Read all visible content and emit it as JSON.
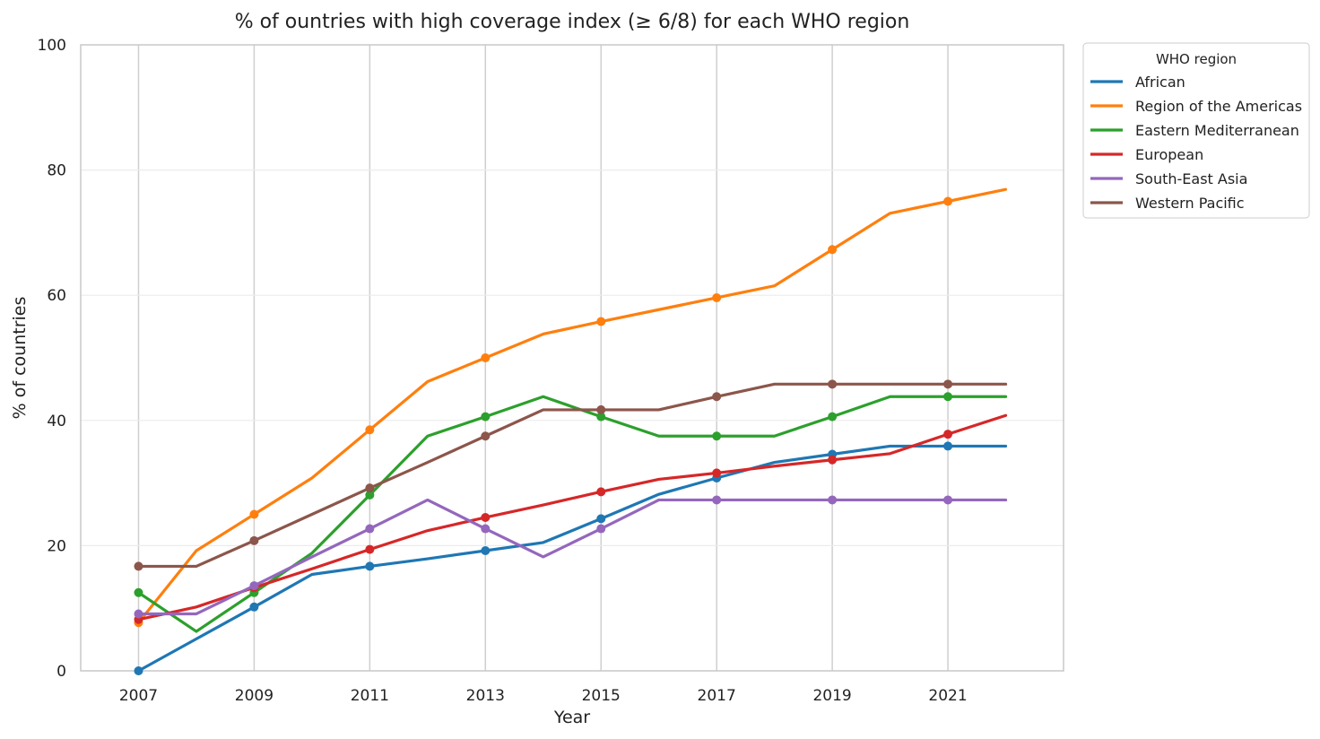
{
  "chart_data": {
    "type": "line",
    "title": "% of ountries with high coverage index (≥ 6/8) for each WHO region",
    "xlabel": "Year",
    "ylabel": "% of countries",
    "xlim": [
      2006,
      2023
    ],
    "ylim": [
      0,
      100
    ],
    "x_ticks": [
      2007,
      2009,
      2011,
      2013,
      2015,
      2017,
      2019,
      2021
    ],
    "y_ticks": [
      0,
      20,
      40,
      60,
      80,
      100
    ],
    "grid": {
      "x_major": true,
      "y_major": true
    },
    "legend": {
      "title": "WHO region",
      "placement": "outside-top-right"
    },
    "x": [
      2007,
      2008,
      2009,
      2010,
      2011,
      2012,
      2013,
      2014,
      2015,
      2016,
      2017,
      2018,
      2019,
      2020,
      2021,
      2022
    ],
    "marker_years": [
      2007,
      2009,
      2011,
      2013,
      2015,
      2017,
      2019,
      2021
    ],
    "series": [
      {
        "name": "African",
        "color": "#1f77b4",
        "values": [
          0,
          5.1,
          10.2,
          15.4,
          16.7,
          17.9,
          19.2,
          20.5,
          24.3,
          28.2,
          30.8,
          33.3,
          34.6,
          35.9,
          35.9,
          35.9
        ]
      },
      {
        "name": "Region of the Americas",
        "color": "#ff7f0e",
        "values": [
          7.7,
          19.2,
          25.0,
          30.8,
          38.5,
          46.2,
          50.0,
          53.8,
          55.8,
          57.7,
          59.6,
          61.5,
          67.3,
          73.1,
          75.0,
          76.9
        ]
      },
      {
        "name": "Eastern Mediterranean",
        "color": "#2ca02c",
        "values": [
          12.5,
          6.3,
          12.5,
          18.8,
          28.1,
          37.5,
          40.6,
          43.8,
          40.6,
          37.5,
          37.5,
          37.5,
          40.6,
          43.8,
          43.8,
          43.8
        ]
      },
      {
        "name": "European",
        "color": "#d62728",
        "values": [
          8.2,
          10.2,
          13.3,
          16.3,
          19.4,
          22.4,
          24.5,
          26.5,
          28.6,
          30.6,
          31.6,
          32.7,
          33.7,
          34.7,
          37.8,
          40.8
        ]
      },
      {
        "name": "South-East Asia",
        "color": "#9467bd",
        "values": [
          9.1,
          9.1,
          13.6,
          18.2,
          22.7,
          27.3,
          22.7,
          18.2,
          22.7,
          27.3,
          27.3,
          27.3,
          27.3,
          27.3,
          27.3,
          27.3
        ]
      },
      {
        "name": "Western Pacific",
        "color": "#8c564b",
        "values": [
          16.7,
          16.7,
          20.8,
          25.0,
          29.2,
          33.3,
          37.5,
          41.7,
          41.7,
          41.7,
          43.8,
          45.8,
          45.8,
          45.8,
          45.8,
          45.8
        ]
      }
    ]
  }
}
